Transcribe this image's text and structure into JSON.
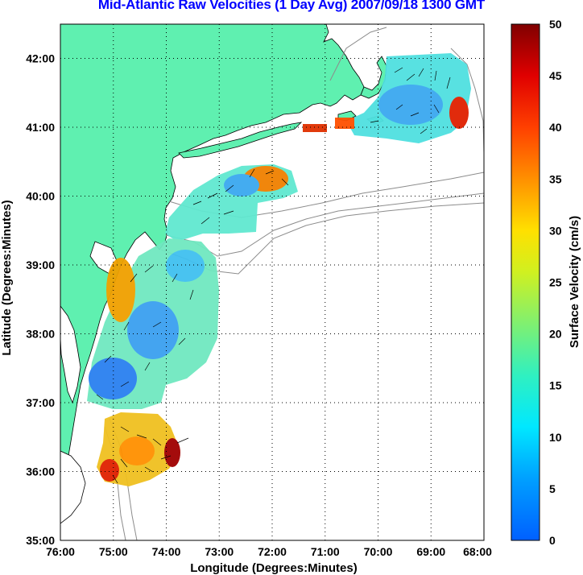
{
  "title": "Mid-Atlantic Raw Velocities (1 Day Avg) 2007/09/18 1300 GMT",
  "map": {
    "type": "heatmap",
    "xlabel": "Longitude (Degrees:Minutes)",
    "ylabel": "Latitude (Degrees:Minutes)",
    "x_ticks": [
      "76:00",
      "75:00",
      "74:00",
      "73:00",
      "72:00",
      "71:00",
      "70:00",
      "69:00",
      "68:00"
    ],
    "y_ticks": [
      "35:00",
      "36:00",
      "37:00",
      "38:00",
      "39:00",
      "40:00",
      "41:00",
      "42:00"
    ],
    "xlim": [
      -76,
      -68
    ],
    "ylim": [
      35,
      42.5
    ],
    "grid": "dotted",
    "land_color": "#5ff0b0",
    "bathymetry_color": "#8c8c8c"
  },
  "colorbar": {
    "label": "Surface Velocity (cm/s)",
    "ticks": [
      "0",
      "5",
      "10",
      "15",
      "20",
      "25",
      "30",
      "35",
      "40",
      "45",
      "50"
    ],
    "range": [
      0,
      50
    ],
    "colormap": "jet"
  }
}
